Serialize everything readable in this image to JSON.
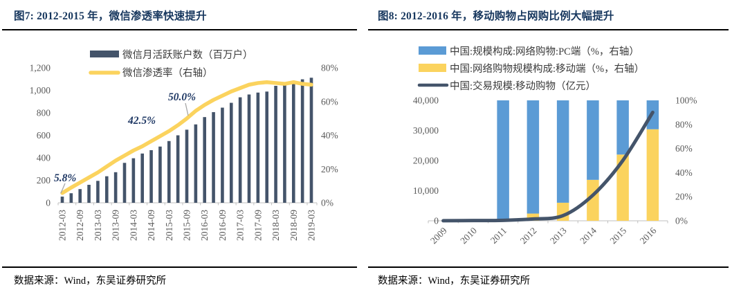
{
  "left_panel": {
    "title": "图7: 2012-2015 年，微信渗透率快速提升",
    "source": "数据来源：Wind，东吴证券研究所",
    "annotations": {
      "a1": "5.8%",
      "a2": "42.5%",
      "a3": "50.0%"
    }
  },
  "right_panel": {
    "title": "图8: 2012-2016 年，移动购物占网购比例大幅提升",
    "source": "数据来源：Wind，东吴证券研究所"
  },
  "colors": {
    "navy_bar": "#44546A",
    "yellow": "#FBD35E",
    "blue": "#5B9BD5",
    "title_navy": "#17375E",
    "axis_gray": "#595959",
    "axis_line": "#BFBFBF"
  },
  "chart_data": [
    {
      "type": "bar",
      "title": "图7: 2012-2015 年，微信渗透率快速提升",
      "categories": [
        "2012-03",
        "2012-06",
        "2012-09",
        "2012-12",
        "2013-03",
        "2013-06",
        "2013-09",
        "2013-12",
        "2014-03",
        "2014-06",
        "2014-09",
        "2014-12",
        "2015-03",
        "2015-06",
        "2015-09",
        "2015-12",
        "2016-03",
        "2016-06",
        "2016-09",
        "2016-12",
        "2017-03",
        "2017-06",
        "2017-09",
        "2017-12",
        "2018-03",
        "2018-06",
        "2018-09",
        "2018-12",
        "2019-03"
      ],
      "x_tick_labels": [
        "2012-03",
        "2012-09",
        "2013-03",
        "2013-09",
        "2014-03",
        "2014-09",
        "2015-03",
        "2015-09",
        "2016-03",
        "2016-09",
        "2017-03",
        "2017-09",
        "2018-03",
        "2018-09",
        "2019-03"
      ],
      "series": [
        {
          "name": "微信月活跃账户数（百万户）",
          "type": "bar",
          "axis": "left",
          "color": "#44546A",
          "values": [
            55,
            85,
            122,
            160,
            195,
            236,
            272,
            355,
            396,
            438,
            468,
            500,
            549,
            600,
            650,
            697,
            762,
            806,
            846,
            889,
            938,
            963,
            980,
            989,
            1040,
            1058,
            1082,
            1098,
            1112
          ]
        },
        {
          "name": "微信渗透率（右轴）",
          "type": "line",
          "axis": "right",
          "color": "#FBD35E",
          "values": [
            5.8,
            9,
            12,
            15,
            18,
            21.5,
            25,
            28,
            31,
            33.5,
            36.5,
            39.5,
            42.5,
            46,
            50,
            54.5,
            58,
            61,
            63.5,
            66,
            68,
            70,
            71,
            71.5,
            71,
            70.5,
            71.5,
            70.5,
            70
          ]
        }
      ],
      "left_axis": {
        "min": 0,
        "max": 1200,
        "ticks": [
          "0",
          "200",
          "400",
          "600",
          "800",
          "1,000",
          "1,200"
        ]
      },
      "right_axis": {
        "min": 0,
        "max": 80,
        "unit": "%",
        "ticks": [
          "0%",
          "20%",
          "40%",
          "60%",
          "80%"
        ]
      },
      "annotations": [
        {
          "text": "5.8%",
          "category": "2012-03",
          "value": 5.8
        },
        {
          "text": "42.5%",
          "category": "2015-03",
          "value": 42.5
        },
        {
          "text": "50.0%",
          "category": "2015-09",
          "value": 50.0
        }
      ],
      "grid": false,
      "legend_position": "top"
    },
    {
      "type": "stacked-bar",
      "title": "图8: 2012-2016 年，移动购物占网购比例大幅提升",
      "categories": [
        "2009",
        "2010",
        "2011",
        "2012",
        "2013",
        "2014",
        "2015",
        "2016"
      ],
      "series": [
        {
          "name": "中国:规模构成:网络购物:PC端（%，右轴）",
          "type": "bar",
          "axis": "right",
          "color": "#5B9BD5",
          "values": [
            null,
            null,
            98.5,
            94,
            85,
            66,
            45,
            24
          ]
        },
        {
          "name": "中国:网络购物规模构成:移动端（%，右轴）",
          "type": "bar",
          "axis": "right",
          "color": "#FBD35E",
          "values": [
            null,
            null,
            1.5,
            6,
            15,
            34,
            55,
            76
          ]
        },
        {
          "name": "中国:交易规模:移动购物（亿元）",
          "type": "line",
          "axis": "left",
          "color": "#44546A",
          "values": [
            20,
            80,
            150,
            600,
            1700,
            8500,
            20000,
            36000
          ]
        }
      ],
      "left_axis": {
        "min": 0,
        "max": 40000,
        "ticks": [
          "0",
          "10,000",
          "20,000",
          "30,000",
          "40,000"
        ]
      },
      "right_axis": {
        "min": 0,
        "max": 100,
        "unit": "%",
        "ticks": [
          "0%",
          "20%",
          "40%",
          "60%",
          "80%",
          "100%"
        ]
      },
      "grid": false,
      "legend_position": "top"
    }
  ]
}
